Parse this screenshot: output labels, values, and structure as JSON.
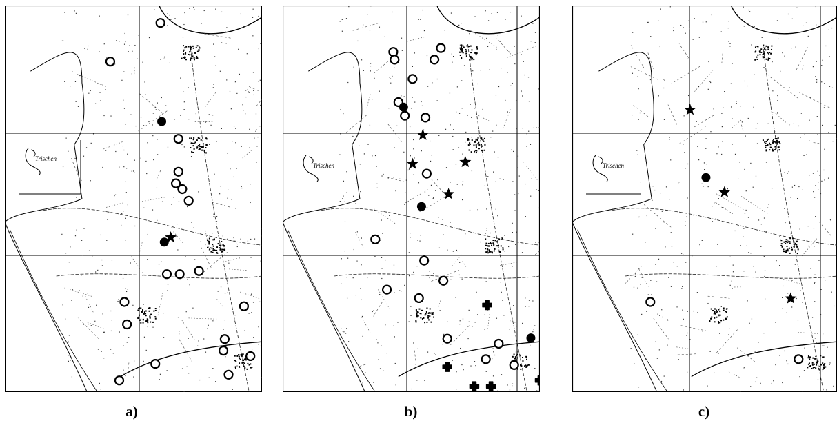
{
  "figure": {
    "inset_label": "Trischen",
    "panels": [
      {
        "id": "a",
        "caption": "a)",
        "markers": [
          {
            "type": "open-circle",
            "x": 0.605,
            "y": 0.045
          },
          {
            "type": "open-circle",
            "x": 0.41,
            "y": 0.145
          },
          {
            "type": "filled-circle",
            "x": 0.61,
            "y": 0.3
          },
          {
            "type": "open-circle",
            "x": 0.675,
            "y": 0.345
          },
          {
            "type": "open-circle",
            "x": 0.675,
            "y": 0.43
          },
          {
            "type": "open-circle",
            "x": 0.665,
            "y": 0.46
          },
          {
            "type": "open-circle",
            "x": 0.69,
            "y": 0.475
          },
          {
            "type": "open-circle",
            "x": 0.715,
            "y": 0.505
          },
          {
            "type": "star",
            "x": 0.645,
            "y": 0.6
          },
          {
            "type": "filled-circle",
            "x": 0.62,
            "y": 0.612
          },
          {
            "type": "open-circle",
            "x": 0.63,
            "y": 0.695
          },
          {
            "type": "open-circle",
            "x": 0.68,
            "y": 0.695
          },
          {
            "type": "open-circle",
            "x": 0.755,
            "y": 0.687
          },
          {
            "type": "open-circle",
            "x": 0.465,
            "y": 0.767
          },
          {
            "type": "open-circle",
            "x": 0.93,
            "y": 0.778
          },
          {
            "type": "open-circle",
            "x": 0.475,
            "y": 0.825
          },
          {
            "type": "open-circle",
            "x": 0.855,
            "y": 0.863
          },
          {
            "type": "open-circle",
            "x": 0.85,
            "y": 0.893
          },
          {
            "type": "open-circle",
            "x": 0.955,
            "y": 0.907
          },
          {
            "type": "open-circle",
            "x": 0.585,
            "y": 0.927
          },
          {
            "type": "open-circle",
            "x": 0.87,
            "y": 0.955
          },
          {
            "type": "open-circle",
            "x": 0.445,
            "y": 0.97
          }
        ]
      },
      {
        "id": "b",
        "caption": "b)",
        "markers": [
          {
            "type": "open-circle",
            "x": 0.615,
            "y": 0.11
          },
          {
            "type": "open-circle",
            "x": 0.59,
            "y": 0.14
          },
          {
            "type": "open-circle",
            "x": 0.43,
            "y": 0.12
          },
          {
            "type": "open-circle",
            "x": 0.435,
            "y": 0.14
          },
          {
            "type": "open-circle",
            "x": 0.505,
            "y": 0.19
          },
          {
            "type": "open-circle",
            "x": 0.45,
            "y": 0.25
          },
          {
            "type": "filled-circle",
            "x": 0.47,
            "y": 0.263
          },
          {
            "type": "open-circle",
            "x": 0.475,
            "y": 0.285
          },
          {
            "type": "open-circle",
            "x": 0.555,
            "y": 0.29
          },
          {
            "type": "star",
            "x": 0.545,
            "y": 0.335
          },
          {
            "type": "star",
            "x": 0.505,
            "y": 0.41
          },
          {
            "type": "star",
            "x": 0.71,
            "y": 0.405
          },
          {
            "type": "open-circle",
            "x": 0.56,
            "y": 0.435
          },
          {
            "type": "star",
            "x": 0.645,
            "y": 0.488
          },
          {
            "type": "filled-circle",
            "x": 0.54,
            "y": 0.52
          },
          {
            "type": "open-circle",
            "x": 0.36,
            "y": 0.605
          },
          {
            "type": "open-circle",
            "x": 0.55,
            "y": 0.66
          },
          {
            "type": "open-circle",
            "x": 0.625,
            "y": 0.712
          },
          {
            "type": "open-circle",
            "x": 0.405,
            "y": 0.735
          },
          {
            "type": "open-circle",
            "x": 0.53,
            "y": 0.757
          },
          {
            "type": "filled-cross",
            "x": 0.795,
            "y": 0.775
          },
          {
            "type": "open-circle",
            "x": 0.64,
            "y": 0.862
          },
          {
            "type": "filled-circle",
            "x": 0.965,
            "y": 0.86
          },
          {
            "type": "open-circle",
            "x": 0.84,
            "y": 0.875
          },
          {
            "type": "filled-cross",
            "x": 0.64,
            "y": 0.935
          },
          {
            "type": "open-circle",
            "x": 0.79,
            "y": 0.915
          },
          {
            "type": "open-circle",
            "x": 0.9,
            "y": 0.93
          },
          {
            "type": "filled-cross",
            "x": 0.745,
            "y": 0.985
          },
          {
            "type": "filled-cross",
            "x": 0.81,
            "y": 0.985
          },
          {
            "type": "filled-cross",
            "x": 1.0,
            "y": 0.97
          }
        ]
      },
      {
        "id": "c",
        "caption": "c)",
        "markers": [
          {
            "type": "star",
            "x": 0.445,
            "y": 0.27
          },
          {
            "type": "filled-circle",
            "x": 0.505,
            "y": 0.445
          },
          {
            "type": "star",
            "x": 0.575,
            "y": 0.483
          },
          {
            "type": "open-circle",
            "x": 0.295,
            "y": 0.767
          },
          {
            "type": "star",
            "x": 0.825,
            "y": 0.758
          },
          {
            "type": "open-circle",
            "x": 0.855,
            "y": 0.915
          }
        ]
      }
    ]
  }
}
